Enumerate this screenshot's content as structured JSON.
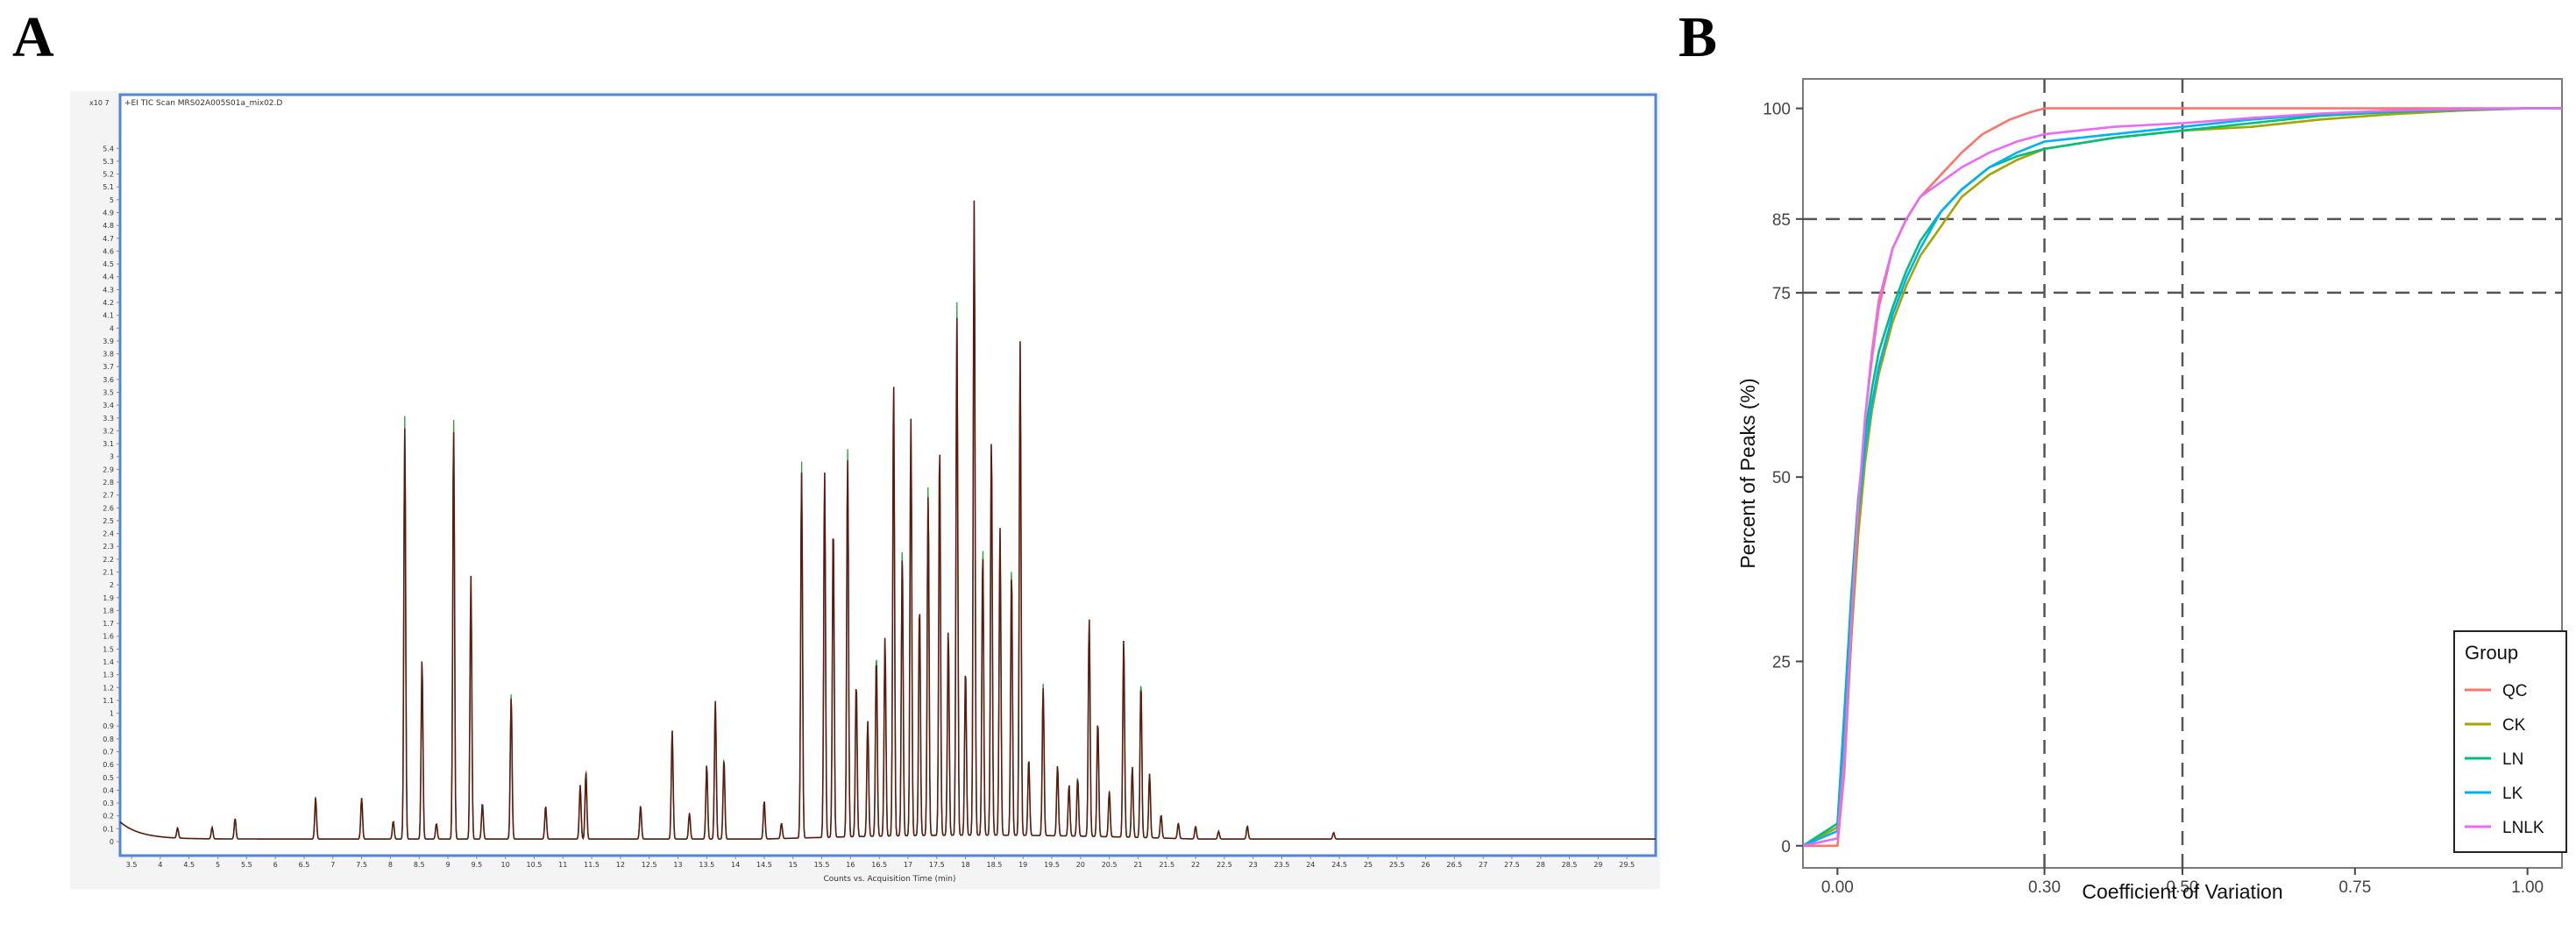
{
  "panels": {
    "a_label": "A",
    "b_label": "B"
  },
  "chart_data": [
    {
      "panel": "A",
      "type": "line",
      "title": "+EI TIC Scan MRS02A005S01a_mix02.D",
      "xlabel": "Counts vs. Acquisition Time (min)",
      "ylabel": "",
      "y_multiplier": "x10 7",
      "xlim": [
        3.3,
        30
      ],
      "ylim": [
        0,
        5.6
      ],
      "x_tick_labels": [
        "3.5",
        "4",
        "4.5",
        "5",
        "5.5",
        "6",
        "6.5",
        "7",
        "7.5",
        "8",
        "8.5",
        "9",
        "9.5",
        "10",
        "10.5",
        "11",
        "11.5",
        "12",
        "12.5",
        "13",
        "13.5",
        "14",
        "14.5",
        "15",
        "15.5",
        "16",
        "16.5",
        "17",
        "17.5",
        "18",
        "18.5",
        "19",
        "19.5",
        "20",
        "20.5",
        "21",
        "21.5",
        "22",
        "22.5",
        "23",
        "23.5",
        "24",
        "24.5",
        "25",
        "25.5",
        "26",
        "26.5",
        "27",
        "27.5",
        "28",
        "28.5",
        "29",
        "29.5"
      ],
      "y_tick_labels": [
        "0",
        "0.1",
        "0.2",
        "0.3",
        "0.4",
        "0.5",
        "0.6",
        "0.7",
        "0.8",
        "0.9",
        "1",
        "1.1",
        "1.2",
        "1.3",
        "1.4",
        "1.5",
        "1.6",
        "1.7",
        "1.8",
        "1.9",
        "2",
        "2.1",
        "2.2",
        "2.3",
        "2.4",
        "2.5",
        "2.6",
        "2.7",
        "2.8",
        "2.9",
        "3",
        "3.1",
        "3.2",
        "3.3",
        "3.4",
        "3.5",
        "3.6",
        "3.7",
        "3.8",
        "3.9",
        "4",
        "4.1",
        "4.2",
        "4.3",
        "4.4",
        "4.5",
        "4.6",
        "4.7",
        "4.8",
        "4.9",
        "5",
        "5.1",
        "5.2",
        "5.3",
        "5.4"
      ],
      "grid": false,
      "peaks": [
        {
          "x": 4.3,
          "y": 0.08
        },
        {
          "x": 4.9,
          "y": 0.09
        },
        {
          "x": 5.3,
          "y": 0.16
        },
        {
          "x": 6.7,
          "y": 0.32
        },
        {
          "x": 7.5,
          "y": 0.32
        },
        {
          "x": 8.05,
          "y": 0.14
        },
        {
          "x": 8.25,
          "y": 3.2
        },
        {
          "x": 8.55,
          "y": 1.4
        },
        {
          "x": 8.8,
          "y": 0.12
        },
        {
          "x": 9.1,
          "y": 3.2
        },
        {
          "x": 9.4,
          "y": 2.05
        },
        {
          "x": 9.6,
          "y": 0.28
        },
        {
          "x": 10.1,
          "y": 1.1
        },
        {
          "x": 10.7,
          "y": 0.26
        },
        {
          "x": 11.3,
          "y": 0.42
        },
        {
          "x": 11.4,
          "y": 0.52
        },
        {
          "x": 12.35,
          "y": 0.26
        },
        {
          "x": 12.9,
          "y": 0.85
        },
        {
          "x": 13.2,
          "y": 0.2
        },
        {
          "x": 13.5,
          "y": 0.58
        },
        {
          "x": 13.65,
          "y": 1.08
        },
        {
          "x": 13.8,
          "y": 0.62
        },
        {
          "x": 14.5,
          "y": 0.3
        },
        {
          "x": 14.8,
          "y": 0.12
        },
        {
          "x": 15.15,
          "y": 2.85
        },
        {
          "x": 15.55,
          "y": 2.85
        },
        {
          "x": 15.7,
          "y": 2.45
        },
        {
          "x": 15.95,
          "y": 2.95
        },
        {
          "x": 16.1,
          "y": 1.2
        },
        {
          "x": 16.3,
          "y": 0.9
        },
        {
          "x": 16.45,
          "y": 1.4
        },
        {
          "x": 16.6,
          "y": 1.55
        },
        {
          "x": 16.75,
          "y": 3.55
        },
        {
          "x": 16.9,
          "y": 2.2
        },
        {
          "x": 17.05,
          "y": 3.25
        },
        {
          "x": 17.2,
          "y": 1.8
        },
        {
          "x": 17.35,
          "y": 2.65
        },
        {
          "x": 17.55,
          "y": 3.05
        },
        {
          "x": 17.7,
          "y": 1.6
        },
        {
          "x": 17.85,
          "y": 4.05
        },
        {
          "x": 18.0,
          "y": 1.3
        },
        {
          "x": 18.15,
          "y": 4.95
        },
        {
          "x": 18.3,
          "y": 2.2
        },
        {
          "x": 18.45,
          "y": 3.1
        },
        {
          "x": 18.6,
          "y": 2.4
        },
        {
          "x": 18.8,
          "y": 2.05
        },
        {
          "x": 18.95,
          "y": 3.85
        },
        {
          "x": 19.1,
          "y": 0.6
        },
        {
          "x": 19.35,
          "y": 1.15
        },
        {
          "x": 19.6,
          "y": 0.55
        },
        {
          "x": 19.8,
          "y": 0.4
        },
        {
          "x": 19.95,
          "y": 0.45
        },
        {
          "x": 20.15,
          "y": 1.7
        },
        {
          "x": 20.3,
          "y": 0.9
        },
        {
          "x": 20.5,
          "y": 0.35
        },
        {
          "x": 20.75,
          "y": 1.55
        },
        {
          "x": 20.9,
          "y": 0.55
        },
        {
          "x": 21.05,
          "y": 1.2
        },
        {
          "x": 21.2,
          "y": 0.5
        },
        {
          "x": 21.4,
          "y": 0.18
        },
        {
          "x": 21.7,
          "y": 0.12
        },
        {
          "x": 22.0,
          "y": 0.1
        },
        {
          "x": 22.4,
          "y": 0.06
        },
        {
          "x": 22.9,
          "y": 0.1
        },
        {
          "x": 24.4,
          "y": 0.05
        }
      ]
    },
    {
      "panel": "B",
      "type": "line",
      "title": "",
      "xlabel": "Coefficient of Variation",
      "ylabel": "Percent of Peaks (%)",
      "xlim": [
        -0.05,
        1.05
      ],
      "ylim": [
        -3,
        104
      ],
      "x_ticks": [
        0.0,
        0.3,
        0.5,
        0.75,
        1.0
      ],
      "x_tick_labels": [
        "0.00",
        "0.30",
        "0.50",
        "0.75",
        "1.00"
      ],
      "y_ticks": [
        0,
        25,
        50,
        75,
        85,
        100
      ],
      "y_tick_labels": [
        "0",
        "25",
        "50",
        "75",
        "85",
        "100"
      ],
      "reference_lines": {
        "x": [
          0.3,
          0.5
        ],
        "y": [
          75,
          85
        ]
      },
      "grid": false,
      "legend": {
        "title": "Group",
        "position": "bottom-right"
      },
      "series": [
        {
          "name": "QC",
          "color": "#F8766D",
          "x": [
            -0.05,
            0.0,
            0.01,
            0.02,
            0.03,
            0.04,
            0.05,
            0.06,
            0.08,
            0.1,
            0.12,
            0.15,
            0.18,
            0.21,
            0.25,
            0.28,
            0.3,
            0.4,
            0.6,
            0.8,
            1.0,
            1.05
          ],
          "y": [
            0,
            0,
            10,
            28,
            45,
            58,
            66,
            73,
            81,
            85,
            88,
            91,
            94,
            96.5,
            98.5,
            99.5,
            100,
            100,
            100,
            100,
            100,
            100
          ]
        },
        {
          "name": "CK",
          "color": "#A3A500",
          "x": [
            -0.05,
            0.0,
            0.01,
            0.02,
            0.03,
            0.04,
            0.05,
            0.06,
            0.08,
            0.1,
            0.12,
            0.15,
            0.18,
            0.22,
            0.26,
            0.3,
            0.4,
            0.5,
            0.6,
            0.7,
            0.8,
            0.9,
            1.0,
            1.05
          ],
          "y": [
            0,
            2.5,
            12,
            28,
            42,
            52,
            59,
            64,
            71,
            76,
            80,
            84,
            88,
            91,
            93,
            94.5,
            96,
            97,
            97.5,
            98.5,
            99.2,
            99.7,
            100,
            100
          ]
        },
        {
          "name": "LN",
          "color": "#00BF7D",
          "x": [
            -0.05,
            0.0,
            0.01,
            0.02,
            0.03,
            0.04,
            0.05,
            0.06,
            0.08,
            0.1,
            0.12,
            0.15,
            0.18,
            0.22,
            0.26,
            0.3,
            0.4,
            0.5,
            0.6,
            0.7,
            0.8,
            0.9,
            1.0,
            1.05
          ],
          "y": [
            0,
            3,
            18,
            34,
            47,
            56,
            62,
            67,
            73,
            78,
            82,
            86,
            89,
            92,
            93.5,
            94.5,
            96,
            97,
            98,
            99,
            99.5,
            99.8,
            100,
            100
          ]
        },
        {
          "name": "LK",
          "color": "#00B0F6",
          "x": [
            -0.05,
            0.0,
            0.01,
            0.02,
            0.03,
            0.04,
            0.05,
            0.06,
            0.08,
            0.1,
            0.12,
            0.15,
            0.18,
            0.22,
            0.26,
            0.3,
            0.4,
            0.5,
            0.6,
            0.7,
            0.8,
            0.9,
            1.0,
            1.05
          ],
          "y": [
            0,
            2,
            16,
            32,
            45,
            54,
            60,
            65,
            72,
            77,
            81,
            86,
            89,
            92,
            94,
            95.5,
            96.5,
            97.5,
            98.5,
            99.2,
            99.6,
            99.9,
            100,
            100
          ]
        },
        {
          "name": "LNLK",
          "color": "#E76BF3",
          "x": [
            -0.05,
            0.0,
            0.01,
            0.02,
            0.03,
            0.04,
            0.05,
            0.06,
            0.08,
            0.1,
            0.12,
            0.15,
            0.18,
            0.22,
            0.26,
            0.3,
            0.4,
            0.5,
            0.6,
            0.7,
            0.8,
            0.9,
            1.0,
            1.05
          ],
          "y": [
            0,
            1,
            12,
            30,
            46,
            58,
            67,
            74,
            81,
            85,
            88,
            90,
            92,
            94,
            95.5,
            96.5,
            97.5,
            98,
            98.7,
            99.3,
            99.7,
            99.9,
            100,
            100
          ]
        }
      ]
    }
  ]
}
